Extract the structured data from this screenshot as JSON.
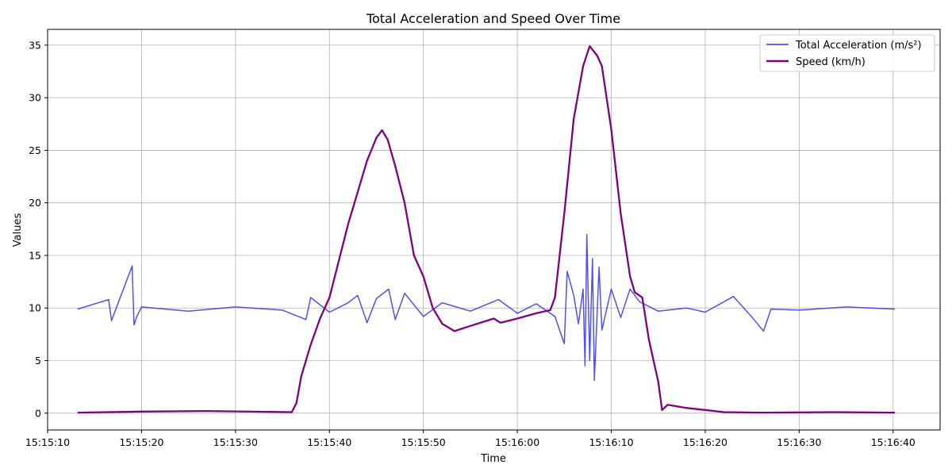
{
  "chart_data": {
    "type": "line",
    "title": "Total Acceleration and Speed Over Time",
    "xlabel": "Time",
    "ylabel": "Values",
    "x_range": [
      "15:15:10",
      "15:16:45"
    ],
    "ylim": [
      -1.6,
      36.5
    ],
    "x_ticks": [
      "15:15:10",
      "15:15:20",
      "15:15:30",
      "15:15:40",
      "15:15:50",
      "15:16:00",
      "15:16:10",
      "15:16:20",
      "15:16:30",
      "15:16:40"
    ],
    "y_ticks": [
      0,
      5,
      10,
      15,
      20,
      25,
      30,
      35
    ],
    "grid": true,
    "legend_position": "top-right",
    "series": [
      {
        "name": "Total Acceleration (m/s²)",
        "color": "#3333ee",
        "x": [
          "15:15:13.2",
          "15:15:16.5",
          "15:15:16.8",
          "15:15:19.0",
          "15:15:19.2",
          "15:15:19.5",
          "15:15:20",
          "15:15:25",
          "15:15:30",
          "15:15:35",
          "15:15:37.5",
          "15:15:38",
          "15:15:40",
          "15:15:42",
          "15:15:43",
          "15:15:44",
          "15:15:45",
          "15:15:46.3",
          "15:15:47",
          "15:15:48",
          "15:15:50",
          "15:15:52",
          "15:15:55",
          "15:15:58",
          "15:16:00",
          "15:16:02",
          "15:16:04",
          "15:16:05",
          "15:16:05.3",
          "15:16:06",
          "15:16:06.5",
          "15:16:07",
          "15:16:07.2",
          "15:16:07.4",
          "15:16:07.7",
          "15:16:08",
          "15:16:08.2",
          "15:16:08.7",
          "15:16:09",
          "15:16:10",
          "15:16:11",
          "15:16:12",
          "15:16:13",
          "15:16:15",
          "15:16:18",
          "15:16:20",
          "15:16:23",
          "15:16:25",
          "15:16:26.2",
          "15:16:27",
          "15:16:30",
          "15:16:35",
          "15:16:40.2"
        ],
        "values": [
          9.9,
          10.8,
          8.8,
          14.0,
          8.4,
          9.2,
          10.1,
          9.7,
          10.1,
          9.8,
          8.9,
          11.0,
          9.6,
          10.5,
          11.2,
          8.6,
          10.9,
          11.8,
          8.9,
          11.4,
          9.2,
          10.5,
          9.7,
          10.8,
          9.5,
          10.4,
          9.2,
          6.6,
          13.5,
          11.2,
          8.5,
          11.8,
          4.5,
          17.0,
          5.0,
          14.7,
          3.1,
          13.9,
          7.9,
          11.8,
          9.1,
          11.8,
          10.6,
          9.7,
          10.0,
          9.6,
          11.1,
          9.1,
          7.8,
          9.9,
          9.8,
          10.1,
          9.9
        ]
      },
      {
        "name": "Speed (km/h)",
        "color": "#800080",
        "x": [
          "15:15:13.2",
          "15:15:20",
          "15:15:27",
          "15:15:36",
          "15:15:36.5",
          "15:15:37",
          "15:15:38",
          "15:15:39",
          "15:15:40",
          "15:15:41",
          "15:15:42",
          "15:15:43",
          "15:15:44",
          "15:15:45",
          "15:15:45.6",
          "15:15:46.2",
          "15:15:47",
          "15:15:48",
          "15:15:49",
          "15:15:50",
          "15:15:51",
          "15:15:52",
          "15:15:53.3",
          "15:15:55",
          "15:15:57.5",
          "15:15:58.2",
          "15:16:00",
          "15:16:02",
          "15:16:03.5",
          "15:16:04",
          "15:16:05",
          "15:16:06",
          "15:16:07",
          "15:16:07.7",
          "15:16:08.5",
          "15:16:09",
          "15:16:10",
          "15:16:11",
          "15:16:12",
          "15:16:12.5",
          "15:16:13.3",
          "15:16:14",
          "15:16:15",
          "15:16:15.4",
          "15:16:16",
          "15:16:18",
          "15:16:20",
          "15:16:22",
          "15:16:26",
          "15:16:34",
          "15:16:40.2"
        ],
        "values": [
          0.05,
          0.15,
          0.2,
          0.1,
          1.0,
          3.5,
          6.5,
          9.0,
          11.0,
          14.5,
          18.0,
          21.0,
          24.0,
          26.2,
          26.9,
          26.0,
          23.5,
          20.0,
          15.0,
          13.0,
          10.0,
          8.5,
          7.8,
          8.3,
          9.0,
          8.6,
          9.0,
          9.5,
          9.8,
          11.0,
          19.0,
          28.0,
          33.0,
          34.9,
          34.0,
          33.0,
          27.0,
          19.0,
          13.0,
          11.5,
          11.0,
          7.0,
          3.0,
          0.3,
          0.8,
          0.5,
          0.3,
          0.1,
          0.05,
          0.1,
          0.05
        ]
      }
    ]
  }
}
